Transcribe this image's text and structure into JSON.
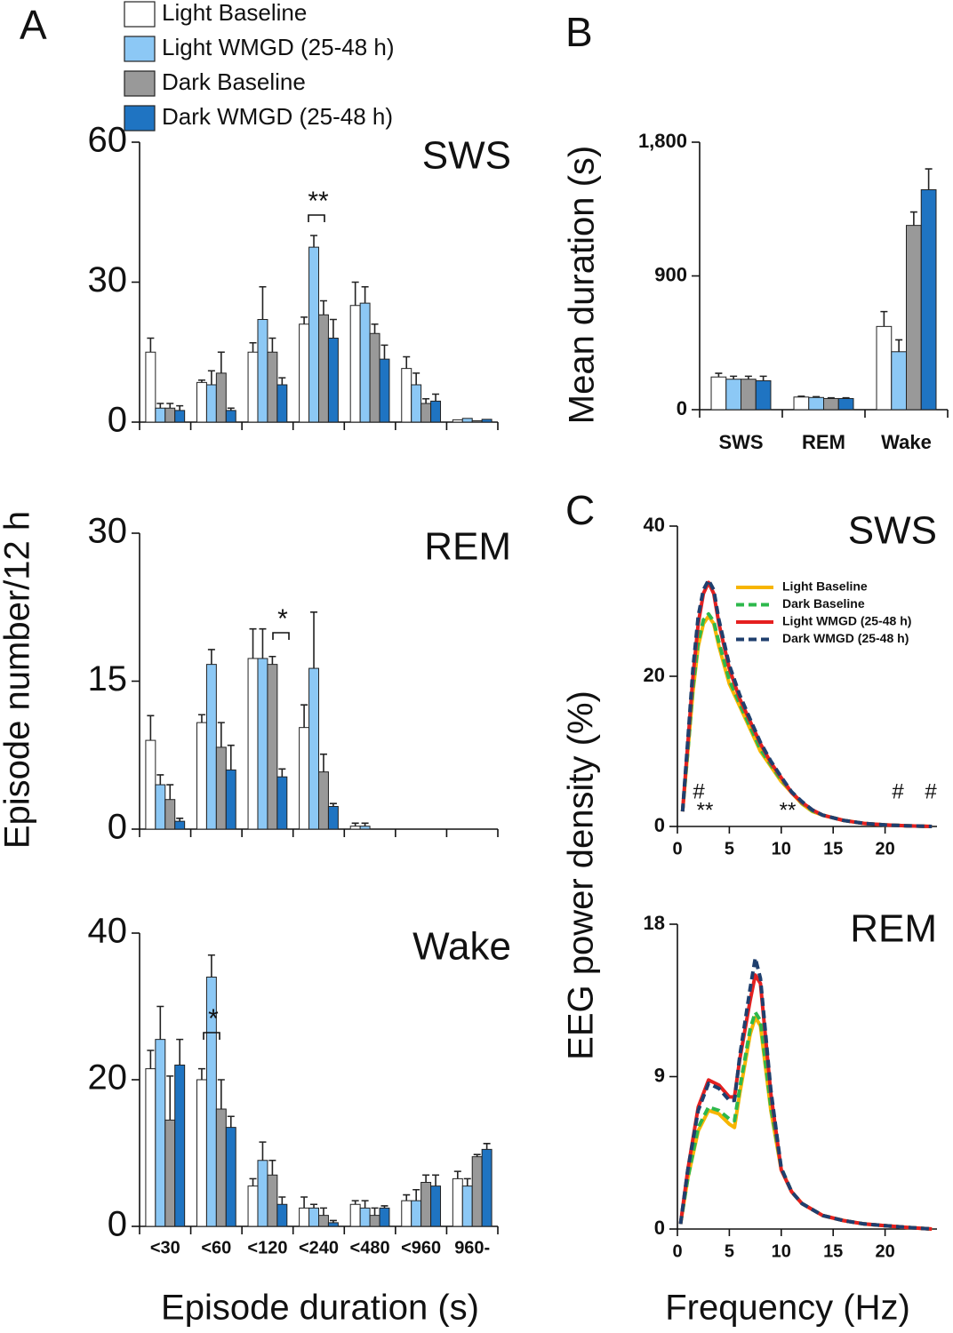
{
  "figure": {
    "panel_a": "A",
    "panel_b": "B",
    "panel_c": "C",
    "a_ylabel": "Episode number/12 h",
    "a_xlabel": "Episode duration (s)",
    "c_ylabel": "EEG power density (%)",
    "c_xlabel": "Frequency (Hz)"
  },
  "chart_data": [
    {
      "type": "bar",
      "title": "SWS",
      "ylim": [
        0,
        60
      ],
      "yticks": [
        0,
        30,
        60
      ],
      "annotations": [
        "**"
      ],
      "series": [
        {
          "name": "Light Baseline",
          "color": "#ffffff",
          "values": [
            15,
            8.5,
            15,
            21,
            25,
            11.5,
            0.5
          ],
          "errors": [
            3,
            0.5,
            2,
            1.5,
            5,
            2.5,
            0
          ]
        },
        {
          "name": "Light WMGD (25-48 h)",
          "color": "#8cc8f5",
          "values": [
            3,
            8,
            22,
            37.5,
            25.5,
            8,
            0.8
          ],
          "errors": [
            1,
            3,
            7,
            2.5,
            3.5,
            2.5,
            0
          ]
        },
        {
          "name": "Dark Baseline",
          "color": "#999999",
          "values": [
            3,
            10.5,
            15,
            23,
            19,
            4,
            0.3
          ],
          "errors": [
            1,
            4.5,
            3,
            3,
            2,
            1,
            0
          ]
        },
        {
          "name": "Dark WMGD (25-48 h)",
          "color": "#1f74c2",
          "values": [
            2.5,
            2.5,
            8,
            18,
            13.5,
            4.5,
            0.6
          ],
          "errors": [
            1,
            0.5,
            1.5,
            4,
            3,
            1.5,
            0
          ]
        }
      ]
    },
    {
      "type": "bar",
      "title": "REM",
      "ylim": [
        0,
        30
      ],
      "yticks": [
        0,
        15,
        30
      ],
      "annotations": [
        "*"
      ],
      "series": [
        {
          "color": "#ffffff",
          "values": [
            9,
            10.8,
            17.3,
            10.3,
            0.3,
            0,
            0
          ],
          "errors": [
            2.5,
            0.8,
            3,
            2.3,
            0.3,
            0,
            0
          ]
        },
        {
          "color": "#8cc8f5",
          "values": [
            4.5,
            16.7,
            17.3,
            16.3,
            0.3,
            0,
            0
          ],
          "errors": [
            1,
            1.5,
            3,
            5.7,
            0.3,
            0,
            0
          ]
        },
        {
          "color": "#999999",
          "values": [
            3,
            8.3,
            16.7,
            5.8,
            0,
            0,
            0
          ],
          "errors": [
            1.5,
            2.5,
            0.8,
            1.8,
            0,
            0,
            0
          ]
        },
        {
          "color": "#1f74c2",
          "values": [
            0.8,
            6,
            5.3,
            2.3,
            0,
            0,
            0
          ],
          "errors": [
            0.3,
            2.5,
            0.8,
            0.3,
            0,
            0,
            0
          ]
        }
      ]
    },
    {
      "type": "bar",
      "title": "Wake",
      "ylim": [
        0,
        40
      ],
      "yticks": [
        0,
        20,
        40
      ],
      "categories": [
        "<30",
        "<60",
        "<120",
        "<240",
        "<480",
        "<960",
        "960-"
      ],
      "annotations": [
        "*"
      ],
      "series": [
        {
          "color": "#ffffff",
          "values": [
            21.5,
            20,
            5.5,
            2.5,
            3,
            3.5,
            6.5
          ],
          "errors": [
            2.5,
            1.5,
            1,
            1.5,
            0.5,
            0.8,
            1
          ]
        },
        {
          "color": "#8cc8f5",
          "values": [
            25.5,
            34,
            9,
            2.5,
            2.5,
            3.5,
            5.5
          ],
          "errors": [
            4.5,
            3,
            2.5,
            0.5,
            1,
            1.5,
            1
          ]
        },
        {
          "color": "#999999",
          "values": [
            14.5,
            16,
            7,
            1.5,
            1.5,
            6,
            9.5
          ],
          "errors": [
            6,
            4,
            2,
            1,
            1,
            1,
            0.3
          ]
        },
        {
          "color": "#1f74c2",
          "values": [
            22,
            13.5,
            3,
            0.5,
            2.5,
            5.5,
            10.5
          ],
          "errors": [
            3.5,
            1.5,
            1,
            0.3,
            0.3,
            1.5,
            0.8
          ]
        }
      ]
    },
    {
      "type": "bar",
      "ylabel": "Mean duration (s)",
      "ylim": [
        0,
        1800
      ],
      "yticks": [
        0,
        900,
        {
          "value": 1800,
          "label": "1,800"
        }
      ],
      "categories": [
        "SWS",
        "REM",
        "Wake"
      ],
      "series": [
        {
          "color": "#ffffff",
          "values": [
            220,
            85,
            560
          ],
          "errors": [
            25,
            5,
            100
          ]
        },
        {
          "color": "#8cc8f5",
          "values": [
            205,
            82,
            390
          ],
          "errors": [
            20,
            5,
            80
          ]
        },
        {
          "color": "#999999",
          "values": [
            205,
            75,
            1240
          ],
          "errors": [
            20,
            5,
            90
          ]
        },
        {
          "color": "#1f74c2",
          "values": [
            195,
            75,
            1480
          ],
          "errors": [
            30,
            5,
            140
          ]
        }
      ]
    },
    {
      "type": "line",
      "title": "SWS",
      "xlim": [
        0,
        25
      ],
      "xticks": [
        0,
        5,
        10,
        15,
        20
      ],
      "ylim": [
        0,
        40
      ],
      "yticks": [
        0,
        20,
        40
      ],
      "annotations": [
        "#",
        "**",
        "**",
        "#",
        "#"
      ],
      "x": [
        0.5,
        1,
        1.5,
        2,
        2.5,
        3,
        3.5,
        4,
        5,
        6,
        7,
        8,
        9,
        10,
        11,
        12,
        13,
        14,
        16,
        18,
        20,
        22,
        24.5
      ],
      "series": [
        {
          "name": "Light Baseline",
          "color": "#f7b500",
          "dash": false,
          "values": [
            2,
            10,
            18,
            24,
            27,
            28,
            27,
            24,
            19,
            16,
            13,
            10,
            8,
            6,
            4.5,
            3,
            2,
            1.5,
            0.8,
            0.4,
            0.2,
            0.1,
            0
          ]
        },
        {
          "name": "Dark Baseline",
          "color": "#2db84c",
          "dash": true,
          "values": [
            2,
            10,
            18.5,
            24.5,
            27.5,
            28.3,
            27.3,
            24.5,
            19.5,
            16.3,
            13.3,
            10.3,
            8.2,
            6.2,
            4.6,
            3.1,
            2.1,
            1.5,
            0.8,
            0.4,
            0.2,
            0.1,
            0
          ]
        },
        {
          "name": "Light WMGD (25-48 h)",
          "color": "#e52020",
          "dash": false,
          "values": [
            2,
            11,
            20,
            27,
            31,
            32.5,
            31,
            27,
            21,
            17,
            14,
            11,
            8.5,
            6.5,
            4.5,
            3.2,
            2.2,
            1.5,
            0.8,
            0.4,
            0.2,
            0.1,
            0
          ]
        },
        {
          "name": "Dark WMGD (25-48 h)",
          "color": "#1f3f6e",
          "dash": true,
          "values": [
            2,
            11.5,
            21,
            28,
            31.5,
            32.8,
            31.5,
            27.5,
            21.5,
            17.5,
            14.3,
            11.2,
            8.7,
            6.6,
            4.6,
            3.3,
            2.2,
            1.5,
            0.8,
            0.4,
            0.2,
            0.1,
            0
          ]
        }
      ]
    },
    {
      "type": "line",
      "title": "REM",
      "xlim": [
        0,
        25
      ],
      "xticks": [
        0,
        5,
        10,
        15,
        20
      ],
      "ylim": [
        0,
        18
      ],
      "yticks": [
        0,
        9,
        18
      ],
      "x": [
        0.3,
        1,
        2,
        3,
        4,
        5,
        5.5,
        6,
        7,
        7.5,
        8,
        9,
        10,
        11,
        12,
        14,
        16,
        18,
        20,
        22,
        24.5
      ],
      "series": [
        {
          "color": "#f7b500",
          "dash": false,
          "values": [
            0.3,
            3,
            5.8,
            7,
            6.8,
            6.2,
            6,
            8,
            11.5,
            12.5,
            12,
            7,
            3.5,
            2.2,
            1.5,
            0.8,
            0.5,
            0.3,
            0.2,
            0.1,
            0
          ]
        },
        {
          "color": "#2db84c",
          "dash": true,
          "values": [
            0.3,
            3,
            6,
            7.2,
            7,
            6.5,
            6.4,
            8.3,
            11.8,
            12.8,
            12.3,
            7.2,
            3.6,
            2.2,
            1.5,
            0.8,
            0.5,
            0.3,
            0.2,
            0.1,
            0
          ]
        },
        {
          "color": "#e52020",
          "dash": false,
          "values": [
            0.3,
            3.5,
            7.2,
            8.8,
            8.5,
            7.8,
            7.8,
            10,
            13.5,
            15,
            14.5,
            8,
            3.5,
            2.2,
            1.5,
            0.8,
            0.5,
            0.3,
            0.2,
            0.1,
            0
          ]
        },
        {
          "color": "#1f3f6e",
          "dash": true,
          "values": [
            0.3,
            3.5,
            7,
            8.6,
            8.3,
            7.6,
            7.6,
            10.2,
            14.2,
            16,
            14.8,
            8.2,
            3.6,
            2.2,
            1.5,
            0.8,
            0.5,
            0.3,
            0.2,
            0.1,
            0
          ]
        }
      ]
    }
  ]
}
